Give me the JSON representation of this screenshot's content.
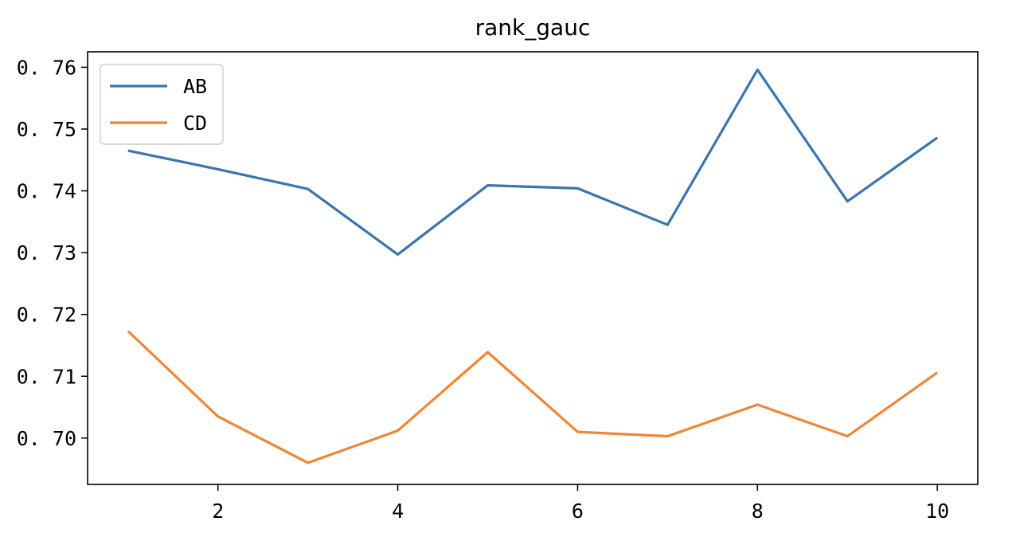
{
  "chart_data": {
    "type": "line",
    "title": "rank_gauc",
    "xlabel": "",
    "ylabel": "",
    "x": [
      1,
      2,
      3,
      4,
      5,
      6,
      7,
      8,
      9,
      10
    ],
    "series": [
      {
        "name": "AB",
        "color": "#3a75ae",
        "values": [
          0.7465,
          0.7435,
          0.7403,
          0.7297,
          0.7409,
          0.7404,
          0.7345,
          0.7596,
          0.7383,
          0.7486
        ]
      },
      {
        "name": "CD",
        "color": "#ef8636",
        "values": [
          0.7173,
          0.7035,
          0.696,
          0.7012,
          0.7139,
          0.701,
          0.7003,
          0.7054,
          0.7003,
          0.7106
        ]
      }
    ],
    "xlim": [
      0.55,
      10.45
    ],
    "ylim": [
      0.6925,
      0.7625
    ],
    "xticks": [
      2,
      4,
      6,
      8,
      10
    ],
    "yticks": [
      0.7,
      0.71,
      0.72,
      0.73,
      0.74,
      0.75,
      0.76
    ],
    "ytick_labels": [
      "0. 70",
      "0. 71",
      "0. 72",
      "0. 73",
      "0. 74",
      "0. 75",
      "0. 76"
    ],
    "legend": "upper-left",
    "grid": false
  }
}
